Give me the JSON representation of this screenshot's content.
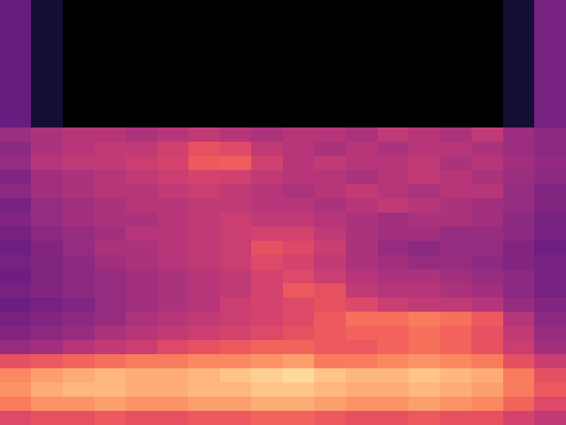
{
  "chart_data": {
    "type": "heatmap",
    "tick_labels": false,
    "color_range": [
      -80,
      0
    ],
    "cells": [
      [
        -55,
        -72,
        -80,
        -80,
        -80,
        -80,
        -80,
        -80,
        -80,
        -80,
        -80,
        -80,
        -80,
        -80,
        -80,
        -80,
        -72,
        -52
      ],
      [
        -55,
        -72,
        -80,
        -80,
        -80,
        -80,
        -80,
        -80,
        -80,
        -80,
        -80,
        -80,
        -80,
        -80,
        -80,
        -80,
        -72,
        -52
      ],
      [
        -55,
        -72,
        -80,
        -80,
        -80,
        -80,
        -80,
        -80,
        -80,
        -80,
        -80,
        -80,
        -80,
        -80,
        -80,
        -80,
        -72,
        -52
      ],
      [
        -55,
        -72,
        -80,
        -80,
        -80,
        -80,
        -80,
        -80,
        -80,
        -80,
        -80,
        -80,
        -80,
        -80,
        -80,
        -80,
        -72,
        -52
      ],
      [
        -55,
        -72,
        -80,
        -80,
        -80,
        -80,
        -80,
        -80,
        -80,
        -80,
        -80,
        -80,
        -80,
        -80,
        -80,
        -80,
        -72,
        -52
      ],
      [
        -55,
        -72,
        -80,
        -80,
        -80,
        -80,
        -80,
        -80,
        -80,
        -80,
        -80,
        -80,
        -80,
        -80,
        -80,
        -80,
        -72,
        -52
      ],
      [
        -55,
        -72,
        -80,
        -80,
        -80,
        -80,
        -80,
        -80,
        -80,
        -80,
        -80,
        -80,
        -80,
        -80,
        -80,
        -80,
        -72,
        -52
      ],
      [
        -55,
        -72,
        -80,
        -80,
        -80,
        -80,
        -80,
        -80,
        -80,
        -80,
        -80,
        -80,
        -80,
        -80,
        -80,
        -80,
        -72,
        -52
      ],
      [
        -55,
        -72,
        -80,
        -80,
        -80,
        -80,
        -80,
        -80,
        -80,
        -80,
        -80,
        -80,
        -80,
        -80,
        -80,
        -80,
        -72,
        -52
      ],
      [
        -45,
        -42,
        -40,
        -40,
        -42,
        -40,
        -38,
        -40,
        -42,
        -40,
        -40,
        -42,
        -38,
        -40,
        -42,
        -38,
        -45,
        -48
      ],
      [
        -48,
        -42,
        -40,
        -38,
        -38,
        -35,
        -30,
        -32,
        -38,
        -40,
        -42,
        -40,
        -42,
        -40,
        -40,
        -42,
        -45,
        -48
      ],
      [
        -46,
        -40,
        -38,
        -38,
        -36,
        -34,
        -28,
        -27,
        -35,
        -40,
        -38,
        -40,
        -40,
        -38,
        -42,
        -40,
        -44,
        -47
      ],
      [
        -50,
        -44,
        -42,
        -40,
        -38,
        -36,
        -34,
        -35,
        -38,
        -40,
        -40,
        -42,
        -40,
        -38,
        -40,
        -42,
        -45,
        -48
      ],
      [
        -48,
        -44,
        -42,
        -40,
        -40,
        -38,
        -36,
        -38,
        -40,
        -42,
        -40,
        -38,
        -40,
        -42,
        -40,
        -40,
        -46,
        -50
      ],
      [
        -52,
        -46,
        -44,
        -42,
        -40,
        -40,
        -38,
        -38,
        -40,
        -40,
        -42,
        -40,
        -38,
        -40,
        -42,
        -44,
        -46,
        -50
      ],
      [
        -50,
        -46,
        -44,
        -42,
        -42,
        -40,
        -38,
        -36,
        -38,
        -38,
        -40,
        -42,
        -44,
        -42,
        -42,
        -44,
        -48,
        -52
      ],
      [
        -52,
        -48,
        -46,
        -44,
        -40,
        -40,
        -38,
        -36,
        -34,
        -34,
        -38,
        -42,
        -44,
        -44,
        -46,
        -46,
        -48,
        -52
      ],
      [
        -54,
        -50,
        -46,
        -42,
        -42,
        -40,
        -38,
        -36,
        -30,
        -32,
        -36,
        -42,
        -46,
        -48,
        -46,
        -46,
        -50,
        -54
      ],
      [
        -52,
        -50,
        -48,
        -44,
        -42,
        -40,
        -38,
        -36,
        -32,
        -34,
        -38,
        -42,
        -44,
        -46,
        -46,
        -48,
        -50,
        -52
      ],
      [
        -54,
        -50,
        -48,
        -46,
        -44,
        -42,
        -40,
        -38,
        -34,
        -32,
        -36,
        -40,
        -42,
        -42,
        -44,
        -46,
        -48,
        -52
      ],
      [
        -52,
        -50,
        -48,
        -46,
        -44,
        -42,
        -40,
        -38,
        -34,
        -28,
        -30,
        -38,
        -40,
        -40,
        -42,
        -44,
        -48,
        -52
      ],
      [
        -54,
        -52,
        -50,
        -46,
        -44,
        -42,
        -40,
        -36,
        -34,
        -32,
        -30,
        -32,
        -36,
        -38,
        -38,
        -40,
        -46,
        -50
      ],
      [
        -52,
        -50,
        -48,
        -46,
        -42,
        -40,
        -38,
        -36,
        -34,
        -32,
        -28,
        -24,
        -24,
        -22,
        -24,
        -28,
        -40,
        -48
      ],
      [
        -50,
        -48,
        -46,
        -42,
        -40,
        -38,
        -36,
        -34,
        -32,
        -30,
        -28,
        -26,
        -26,
        -24,
        -26,
        -30,
        -38,
        -46
      ],
      [
        -46,
        -44,
        -40,
        -38,
        -36,
        -32,
        -30,
        -28,
        -26,
        -26,
        -28,
        -28,
        -26,
        -24,
        -26,
        -30,
        -36,
        -44
      ],
      [
        -30,
        -28,
        -26,
        -24,
        -22,
        -22,
        -20,
        -20,
        -18,
        -16,
        -22,
        -22,
        -20,
        -18,
        -20,
        -22,
        -30,
        -36
      ],
      [
        -20,
        -16,
        -14,
        -12,
        -14,
        -14,
        -12,
        -10,
        -8,
        -6,
        -10,
        -12,
        -12,
        -10,
        -12,
        -14,
        -22,
        -30
      ],
      [
        -18,
        -14,
        -12,
        -12,
        -14,
        -14,
        -12,
        -12,
        -10,
        -10,
        -12,
        -14,
        -14,
        -12,
        -14,
        -16,
        -22,
        -28
      ],
      [
        -22,
        -18,
        -18,
        -16,
        -18,
        -18,
        -16,
        -16,
        -14,
        -14,
        -16,
        -18,
        -18,
        -16,
        -18,
        -20,
        -26,
        -32
      ],
      [
        -32,
        -30,
        -30,
        -28,
        -30,
        -30,
        -28,
        -28,
        -26,
        -26,
        -28,
        -30,
        -30,
        -28,
        -30,
        -30,
        -34,
        -38
      ]
    ]
  }
}
